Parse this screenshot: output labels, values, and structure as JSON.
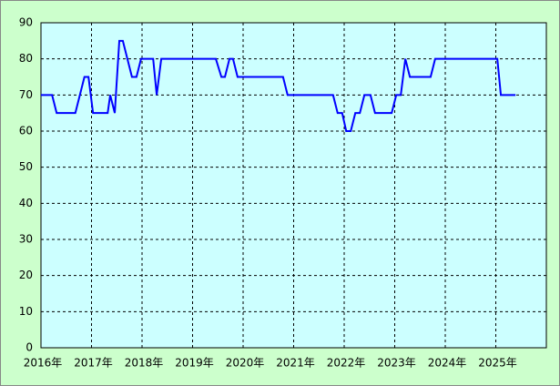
{
  "chart_data": {
    "type": "line",
    "x": [
      2016.0,
      2016.22,
      2016.31,
      2016.68,
      2016.86,
      2016.94,
      2017.03,
      2017.32,
      2017.37,
      2017.46,
      2017.55,
      2017.62,
      2017.8,
      2017.89,
      2017.98,
      2018.22,
      2018.29,
      2018.38,
      2019.46,
      2019.57,
      2019.64,
      2019.73,
      2019.8,
      2019.89,
      2020.79,
      2020.88,
      2021.78,
      2021.87,
      2021.96,
      2022.04,
      2022.13,
      2022.22,
      2022.31,
      2022.4,
      2022.52,
      2022.61,
      2022.94,
      2023.03,
      2023.12,
      2023.21,
      2023.3,
      2023.71,
      2023.8,
      2025.03,
      2025.1,
      2025.39
    ],
    "values": [
      70,
      70,
      65,
      65,
      75,
      75,
      65,
      65,
      70,
      65,
      85,
      85,
      75,
      75,
      80,
      80,
      70,
      80,
      80,
      75,
      75,
      80,
      80,
      75,
      75,
      70,
      70,
      65,
      65,
      60,
      60,
      65,
      65,
      70,
      70,
      65,
      65,
      70,
      70,
      80,
      75,
      75,
      80,
      80,
      70,
      70
    ],
    "color": "#0000ff",
    "xlim": [
      2016,
      2026
    ],
    "xticks": [
      {
        "value": 2016,
        "label": "2016年"
      },
      {
        "value": 2017,
        "label": "2017年"
      },
      {
        "value": 2018,
        "label": "2018年"
      },
      {
        "value": 2019,
        "label": "2019年"
      },
      {
        "value": 2020,
        "label": "2020年"
      },
      {
        "value": 2021,
        "label": "2021年"
      },
      {
        "value": 2022,
        "label": "2022年"
      },
      {
        "value": 2023,
        "label": "2023年"
      },
      {
        "value": 2024,
        "label": "2024年"
      },
      {
        "value": 2025,
        "label": "2025年"
      }
    ],
    "ylim": [
      0,
      90
    ],
    "yticks": [
      0,
      10,
      20,
      30,
      40,
      50,
      60,
      70,
      80,
      90
    ],
    "grid": true
  }
}
